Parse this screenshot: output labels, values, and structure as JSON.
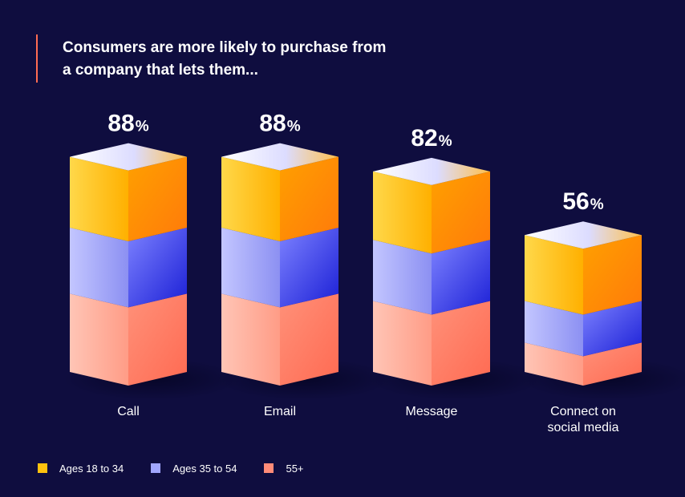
{
  "chart_data": {
    "type": "bar",
    "title_lines": [
      "Consumers are more likely to purchase from",
      "a company that lets them..."
    ],
    "categories": [
      [
        "Call"
      ],
      [
        "Email"
      ],
      [
        "Message"
      ],
      [
        "Connect on",
        "social media"
      ]
    ],
    "totals": [
      88,
      88,
      82,
      56
    ],
    "percent_sign": "%",
    "series": [
      {
        "name": "Ages 18 to 34",
        "values": [
          29,
          29,
          28,
          27
        ]
      },
      {
        "name": "Ages 35 to 54",
        "values": [
          27,
          27,
          25,
          17
        ]
      },
      {
        "name": "55+",
        "values": [
          32,
          32,
          29,
          12
        ]
      }
    ],
    "ylim": [
      0,
      100
    ]
  },
  "colors": {
    "background": "#0f0d3f",
    "accent": "#ff6b52",
    "series": [
      "#ffc20e",
      "#a1a6ff",
      "#ff8b78"
    ]
  }
}
